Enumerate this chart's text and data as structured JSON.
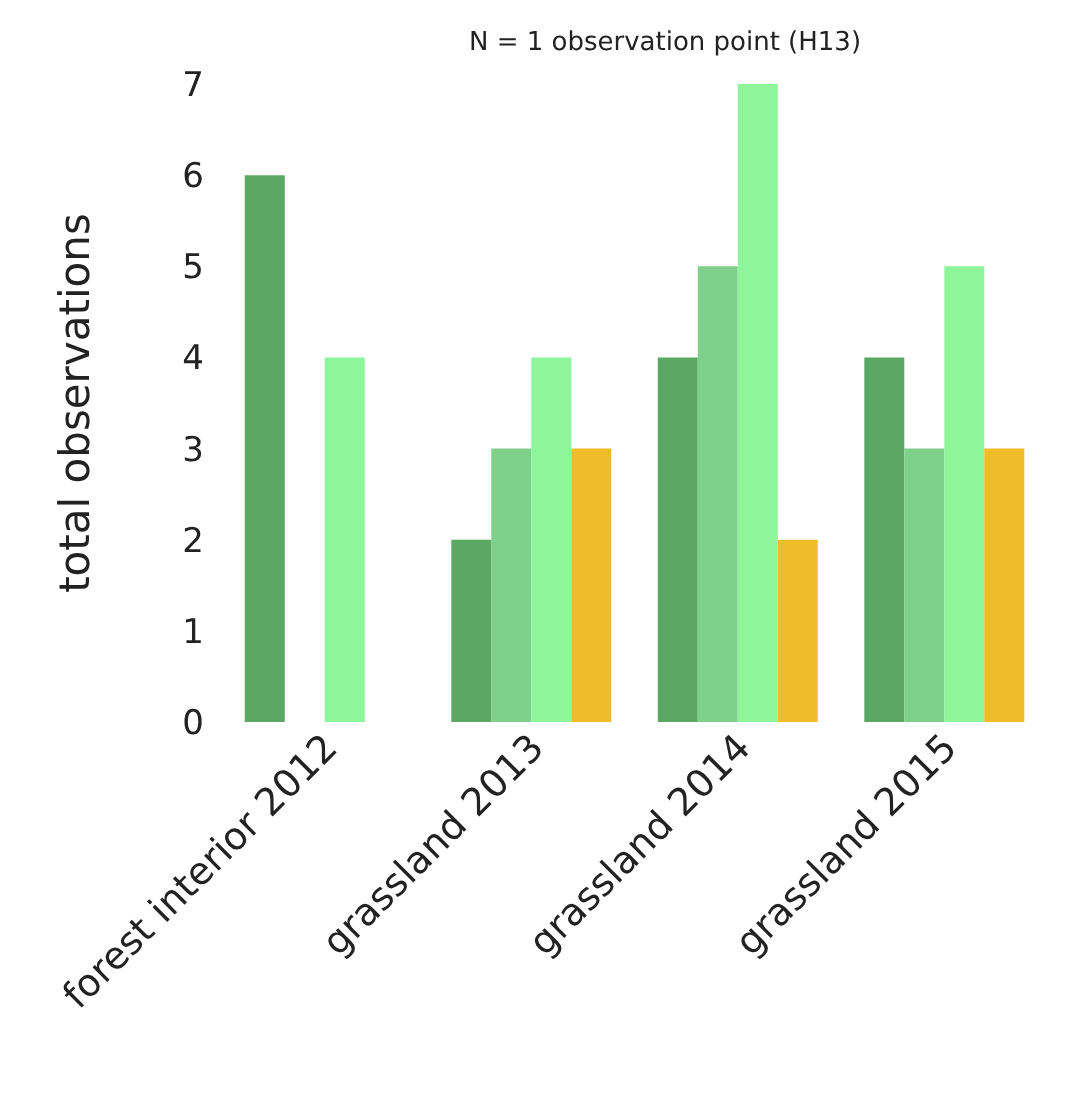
{
  "chart_data": {
    "type": "bar",
    "title": "N = 1 observation point (H13)",
    "ylabel": "total observations",
    "categories": [
      "forest interior 2012",
      "grassland 2013",
      "grassland 2014",
      "grassland 2015"
    ],
    "series": [
      {
        "color": "#5aa864",
        "values": [
          6,
          2,
          4,
          4
        ]
      },
      {
        "color": "#7fd08a",
        "values": [
          null,
          3,
          5,
          3
        ]
      },
      {
        "color": "#8ef59a",
        "values": [
          4,
          4,
          7,
          5
        ]
      },
      {
        "color": "#f0bc2a",
        "values": [
          null,
          3,
          2,
          3
        ]
      }
    ],
    "ylim": [
      0,
      7
    ],
    "yticks": [
      0,
      1,
      2,
      3,
      4,
      5,
      6,
      7
    ],
    "grid": false
  }
}
